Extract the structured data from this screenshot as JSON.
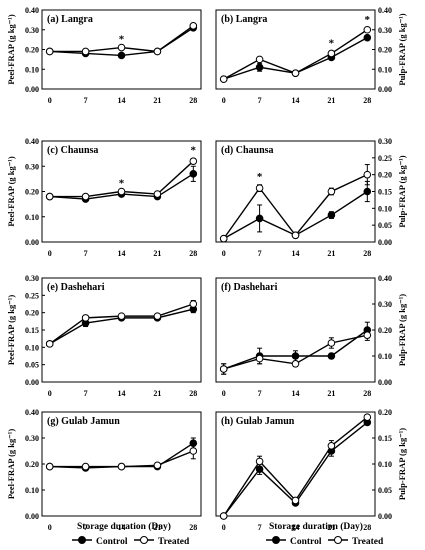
{
  "xlabel": "Storage duration (Day)",
  "legend": {
    "control": "Control",
    "treated": "Treated"
  },
  "chart_data": [
    {
      "id": "a",
      "title": "(a) Langra",
      "type": "line",
      "ylabel": "Peel-FRAP (g kg⁻¹)",
      "x": [
        0,
        7,
        14,
        21,
        28
      ],
      "ylim": [
        0,
        0.4
      ],
      "yticks": [
        "0.00",
        "0.10",
        "0.20",
        "0.30",
        "0.40"
      ],
      "series": [
        {
          "name": "Control",
          "values": [
            0.19,
            0.18,
            0.17,
            0.19,
            0.31
          ],
          "err": [
            0,
            0,
            0,
            0,
            0
          ]
        },
        {
          "name": "Treated",
          "values": [
            0.19,
            0.19,
            0.21,
            0.19,
            0.32
          ],
          "err": [
            0,
            0.01,
            0,
            0,
            0
          ]
        }
      ],
      "stars": [
        14
      ]
    },
    {
      "id": "b",
      "title": "(b) Langra",
      "type": "line",
      "ylabel": "Pulp-FRAP (g kg⁻¹)",
      "x": [
        0,
        7,
        14,
        21,
        28
      ],
      "ylim": [
        0,
        0.4
      ],
      "yticks": [
        "0.00",
        "0.10",
        "0.20",
        "0.30",
        "0.40"
      ],
      "series": [
        {
          "name": "Control",
          "values": [
            0.05,
            0.11,
            0.08,
            0.16,
            0.26
          ],
          "err": [
            0,
            0.02,
            0,
            0.01,
            0.01
          ]
        },
        {
          "name": "Treated",
          "values": [
            0.05,
            0.15,
            0.08,
            0.18,
            0.3
          ],
          "err": [
            0,
            0.01,
            0,
            0.01,
            0.01
          ]
        }
      ],
      "stars": [
        21,
        28
      ]
    },
    {
      "id": "c",
      "title": "(c) Chaunsa",
      "type": "line",
      "ylabel": "Peel-FRAP (g kg⁻¹)",
      "x": [
        0,
        7,
        14,
        21,
        28
      ],
      "ylim": [
        0,
        0.4
      ],
      "yticks": [
        "0.00",
        "0.10",
        "0.20",
        "0.30",
        "0.40"
      ],
      "series": [
        {
          "name": "Control",
          "values": [
            0.18,
            0.17,
            0.19,
            0.18,
            0.27
          ],
          "err": [
            0,
            0,
            0,
            0,
            0.03
          ]
        },
        {
          "name": "Treated",
          "values": [
            0.18,
            0.18,
            0.2,
            0.19,
            0.32
          ],
          "err": [
            0,
            0,
            0,
            0,
            0.01
          ]
        }
      ],
      "stars": [
        14,
        28
      ]
    },
    {
      "id": "d",
      "title": "(d) Chaunsa",
      "type": "line",
      "ylabel": "Pulp-FRAP (g kg⁻¹)",
      "x": [
        0,
        7,
        14,
        21,
        28
      ],
      "ylim": [
        0,
        0.3
      ],
      "yticks": [
        "0.00",
        "0.05",
        "0.10",
        "0.15",
        "0.20",
        "0.25",
        "0.30"
      ],
      "series": [
        {
          "name": "Control",
          "values": [
            0.01,
            0.07,
            0.02,
            0.08,
            0.15
          ],
          "err": [
            0,
            0.04,
            0,
            0.01,
            0.03
          ]
        },
        {
          "name": "Treated",
          "values": [
            0.01,
            0.16,
            0.02,
            0.15,
            0.2
          ],
          "err": [
            0,
            0.01,
            0,
            0.01,
            0.03
          ]
        }
      ],
      "stars": [
        7
      ]
    },
    {
      "id": "e",
      "title": "(e) Dashehari",
      "type": "line",
      "ylabel": "Peel-FRAP (g kg⁻¹)",
      "x": [
        0,
        7,
        14,
        21,
        28
      ],
      "ylim": [
        0,
        0.3
      ],
      "yticks": [
        "0.00",
        "0.05",
        "0.10",
        "0.15",
        "0.20",
        "0.25",
        "0.30"
      ],
      "series": [
        {
          "name": "Control",
          "values": [
            0.11,
            0.17,
            0.185,
            0.185,
            0.21
          ],
          "err": [
            0,
            0.01,
            0,
            0,
            0.01
          ]
        },
        {
          "name": "Treated",
          "values": [
            0.11,
            0.185,
            0.19,
            0.19,
            0.225
          ],
          "err": [
            0,
            0,
            0,
            0,
            0.01
          ]
        }
      ],
      "stars": []
    },
    {
      "id": "f",
      "title": "(f) Dashehari",
      "type": "line",
      "ylabel": "Pulp-FRAP (g kg⁻¹)",
      "x": [
        0,
        7,
        14,
        21,
        28
      ],
      "ylim": [
        0,
        0.4
      ],
      "yticks": [
        "0.00",
        "0.10",
        "0.20",
        "0.30",
        "0.40"
      ],
      "series": [
        {
          "name": "Control",
          "values": [
            0.05,
            0.1,
            0.1,
            0.1,
            0.2
          ],
          "err": [
            0.02,
            0.03,
            0.02,
            0.01,
            0.03
          ]
        },
        {
          "name": "Treated",
          "values": [
            0.05,
            0.09,
            0.07,
            0.15,
            0.18
          ],
          "err": [
            0.02,
            0.02,
            0.01,
            0.02,
            0.02
          ]
        }
      ],
      "stars": []
    },
    {
      "id": "g",
      "title": "(g) Gulab Jamun",
      "type": "line",
      "ylabel": "Peel-FRAP (g kg⁻¹)",
      "x": [
        0,
        7,
        14,
        21,
        28
      ],
      "ylim": [
        0,
        0.4
      ],
      "yticks": [
        "0.00",
        "0.10",
        "0.20",
        "0.30",
        "0.40"
      ],
      "series": [
        {
          "name": "Control",
          "values": [
            0.19,
            0.185,
            0.19,
            0.19,
            0.28
          ],
          "err": [
            0,
            0,
            0,
            0,
            0.02
          ]
        },
        {
          "name": "Treated",
          "values": [
            0.19,
            0.19,
            0.19,
            0.195,
            0.25
          ],
          "err": [
            0,
            0,
            0,
            0,
            0.03
          ]
        }
      ],
      "stars": []
    },
    {
      "id": "h",
      "title": "(h) Gulab Jamun",
      "type": "line",
      "ylabel": "Pulp-FRAP (g kg⁻¹)",
      "x": [
        0,
        7,
        14,
        21,
        28
      ],
      "ylim": [
        0,
        0.2
      ],
      "yticks": [
        "0.00",
        "0.05",
        "0.10",
        "0.15",
        "0.20"
      ],
      "series": [
        {
          "name": "Control",
          "values": [
            0.0,
            0.09,
            0.025,
            0.125,
            0.18
          ],
          "err": [
            0,
            0.01,
            0,
            0.01,
            0
          ]
        },
        {
          "name": "Treated",
          "values": [
            0.0,
            0.105,
            0.03,
            0.135,
            0.19
          ],
          "err": [
            0,
            0.01,
            0,
            0.01,
            0
          ]
        }
      ],
      "stars": []
    }
  ]
}
